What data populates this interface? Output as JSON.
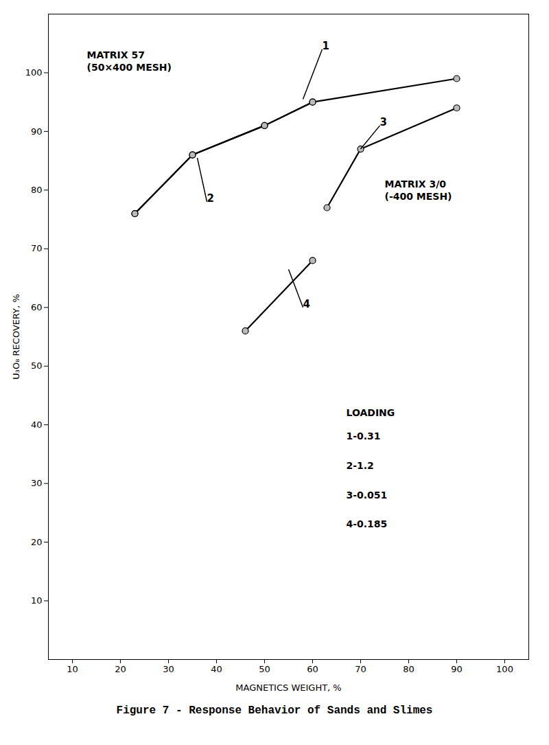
{
  "chart_data": {
    "type": "line",
    "title": "Figure 7 - Response Behavior of Sands and Slimes",
    "xlabel": "MAGNETICS WEIGHT, %",
    "ylabel": "U₃O₈ RECOVERY, %",
    "xlim": [
      5,
      105
    ],
    "ylim": [
      0,
      110
    ],
    "xticks": [
      10,
      20,
      30,
      40,
      50,
      60,
      70,
      80,
      90,
      100
    ],
    "yticks": [
      10,
      20,
      30,
      40,
      50,
      60,
      70,
      80,
      90,
      100
    ],
    "grid": false,
    "series": [
      {
        "color": "#000000",
        "marker": "circle",
        "x": [
          23,
          35,
          50,
          60,
          90
        ],
        "values": [
          76,
          86,
          91,
          95,
          99
        ]
      },
      {
        "color": "#000000",
        "marker": "circle",
        "x": [
          23,
          35,
          50,
          60
        ],
        "values": [
          76,
          86,
          91,
          95
        ]
      },
      {
        "color": "#000000",
        "marker": "circle",
        "x": [
          63,
          70,
          90
        ],
        "values": [
          77,
          87,
          94
        ]
      },
      {
        "color": "#000000",
        "marker": "circle",
        "x": [
          46,
          60
        ],
        "values": [
          56,
          68
        ]
      }
    ],
    "annotations": [
      {
        "text": "1",
        "x": 62,
        "y": 104,
        "xy": [
          58,
          95.5
        ]
      },
      {
        "text": "2",
        "x": 38,
        "y": 78,
        "xy": [
          36,
          85.5
        ]
      },
      {
        "text": "3",
        "x": 74,
        "y": 91,
        "xy": [
          70,
          87
        ]
      },
      {
        "text": "4",
        "x": 58,
        "y": 60,
        "xy": [
          55,
          66.5
        ]
      },
      {
        "text": "MATRIX 57\n(50×400 MESH)",
        "x": 13,
        "y": 104
      },
      {
        "text": "MATRIX 3/0\n(-400 MESH)",
        "x": 75,
        "y": 82
      },
      {
        "text": "LOADING",
        "x": 67,
        "y": 43
      },
      {
        "text": "1-0.31",
        "x": 67,
        "y": 39
      },
      {
        "text": "2-1.2",
        "x": 67,
        "y": 34
      },
      {
        "text": "3-0.051",
        "x": 67,
        "y": 29
      },
      {
        "text": "4-0.185",
        "x": 67,
        "y": 24
      }
    ]
  }
}
